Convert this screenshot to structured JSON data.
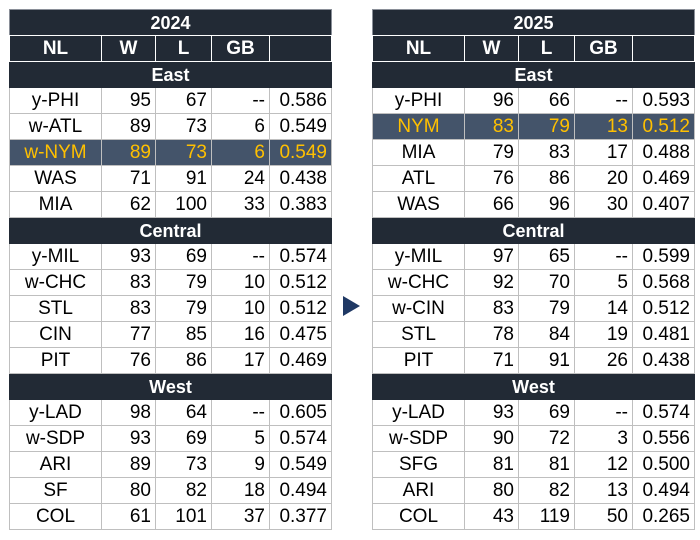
{
  "columns": [
    "NL",
    "W",
    "L",
    "GB",
    ""
  ],
  "tables": [
    {
      "year": "2024",
      "divisions": [
        {
          "name": "East",
          "rows": [
            {
              "team": "y-PHI",
              "w": "95",
              "l": "67",
              "gb": "--",
              "pct": "0.586",
              "highlight": false
            },
            {
              "team": "w-ATL",
              "w": "89",
              "l": "73",
              "gb": "6",
              "pct": "0.549",
              "highlight": false
            },
            {
              "team": "w-NYM",
              "w": "89",
              "l": "73",
              "gb": "6",
              "pct": "0.549",
              "highlight": true
            },
            {
              "team": "WAS",
              "w": "71",
              "l": "91",
              "gb": "24",
              "pct": "0.438",
              "highlight": false
            },
            {
              "team": "MIA",
              "w": "62",
              "l": "100",
              "gb": "33",
              "pct": "0.383",
              "highlight": false
            }
          ]
        },
        {
          "name": "Central",
          "rows": [
            {
              "team": "y-MIL",
              "w": "93",
              "l": "69",
              "gb": "--",
              "pct": "0.574",
              "highlight": false
            },
            {
              "team": "w-CHC",
              "w": "83",
              "l": "79",
              "gb": "10",
              "pct": "0.512",
              "highlight": false
            },
            {
              "team": "STL",
              "w": "83",
              "l": "79",
              "gb": "10",
              "pct": "0.512",
              "highlight": false
            },
            {
              "team": "CIN",
              "w": "77",
              "l": "85",
              "gb": "16",
              "pct": "0.475",
              "highlight": false
            },
            {
              "team": "PIT",
              "w": "76",
              "l": "86",
              "gb": "17",
              "pct": "0.469",
              "highlight": false
            }
          ]
        },
        {
          "name": "West",
          "rows": [
            {
              "team": "y-LAD",
              "w": "98",
              "l": "64",
              "gb": "--",
              "pct": "0.605",
              "highlight": false
            },
            {
              "team": "w-SDP",
              "w": "93",
              "l": "69",
              "gb": "5",
              "pct": "0.574",
              "highlight": false
            },
            {
              "team": "ARI",
              "w": "89",
              "l": "73",
              "gb": "9",
              "pct": "0.549",
              "highlight": false
            },
            {
              "team": "SF",
              "w": "80",
              "l": "82",
              "gb": "18",
              "pct": "0.494",
              "highlight": false
            },
            {
              "team": "COL",
              "w": "61",
              "l": "101",
              "gb": "37",
              "pct": "0.377",
              "highlight": false
            }
          ]
        }
      ]
    },
    {
      "year": "2025",
      "divisions": [
        {
          "name": "East",
          "rows": [
            {
              "team": "y-PHI",
              "w": "96",
              "l": "66",
              "gb": "--",
              "pct": "0.593",
              "highlight": false
            },
            {
              "team": "NYM",
              "w": "83",
              "l": "79",
              "gb": "13",
              "pct": "0.512",
              "highlight": true
            },
            {
              "team": "MIA",
              "w": "79",
              "l": "83",
              "gb": "17",
              "pct": "0.488",
              "highlight": false
            },
            {
              "team": "ATL",
              "w": "76",
              "l": "86",
              "gb": "20",
              "pct": "0.469",
              "highlight": false
            },
            {
              "team": "WAS",
              "w": "66",
              "l": "96",
              "gb": "30",
              "pct": "0.407",
              "highlight": false
            }
          ]
        },
        {
          "name": "Central",
          "rows": [
            {
              "team": "y-MIL",
              "w": "97",
              "l": "65",
              "gb": "--",
              "pct": "0.599",
              "highlight": false
            },
            {
              "team": "w-CHC",
              "w": "92",
              "l": "70",
              "gb": "5",
              "pct": "0.568",
              "highlight": false
            },
            {
              "team": "w-CIN",
              "w": "83",
              "l": "79",
              "gb": "14",
              "pct": "0.512",
              "highlight": false
            },
            {
              "team": "STL",
              "w": "78",
              "l": "84",
              "gb": "19",
              "pct": "0.481",
              "highlight": false
            },
            {
              "team": "PIT",
              "w": "71",
              "l": "91",
              "gb": "26",
              "pct": "0.438",
              "highlight": false
            }
          ]
        },
        {
          "name": "West",
          "rows": [
            {
              "team": "y-LAD",
              "w": "93",
              "l": "69",
              "gb": "--",
              "pct": "0.574",
              "highlight": false
            },
            {
              "team": "w-SDP",
              "w": "90",
              "l": "72",
              "gb": "3",
              "pct": "0.556",
              "highlight": false
            },
            {
              "team": "SFG",
              "w": "81",
              "l": "81",
              "gb": "12",
              "pct": "0.500",
              "highlight": false
            },
            {
              "team": "ARI",
              "w": "80",
              "l": "82",
              "gb": "13",
              "pct": "0.494",
              "highlight": false
            },
            {
              "team": "COL",
              "w": "43",
              "l": "119",
              "gb": "50",
              "pct": "0.265",
              "highlight": false
            }
          ]
        }
      ]
    }
  ],
  "colors": {
    "header_bg": "#222a35",
    "highlight_bg": "#44546a",
    "highlight_text": "#ffc000",
    "arrow": "#1f3864"
  },
  "arrow_icon": "triangle-right"
}
